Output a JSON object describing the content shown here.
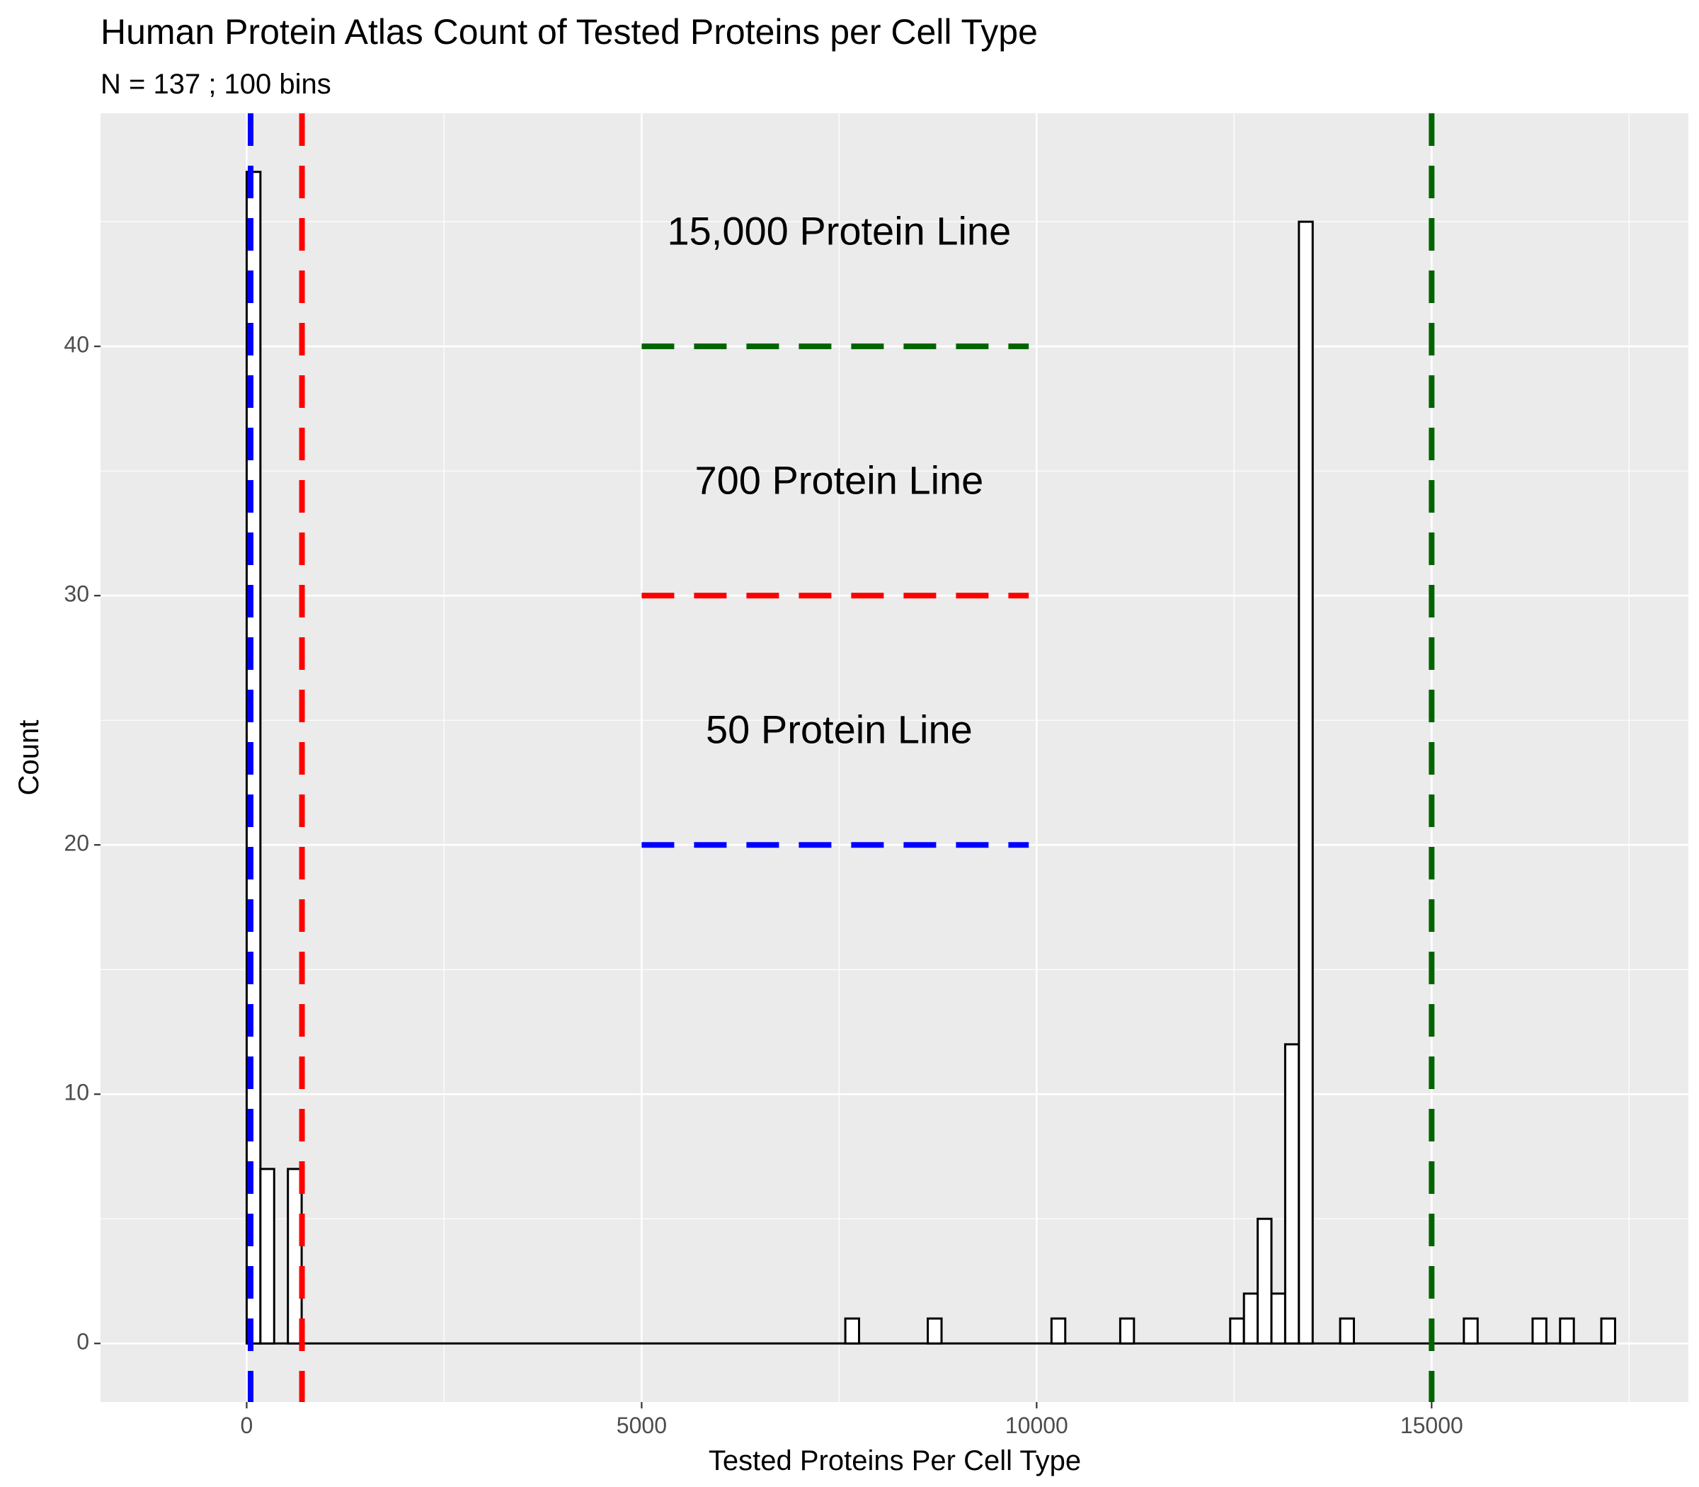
{
  "chart_data": {
    "type": "bar",
    "title": "Human Protein Atlas Count of Tested Proteins per Cell Type",
    "subtitle": "N =  137 ; 100 bins",
    "xlabel": "Tested Proteins Per Cell Type",
    "ylabel": "Count",
    "xlim": [
      -1850,
      18250
    ],
    "ylim": [
      -2.35,
      49.35
    ],
    "x_ticks": [
      {
        "value": 0,
        "label": "0"
      },
      {
        "value": 5000,
        "label": "5000"
      },
      {
        "value": 10000,
        "label": "10000"
      },
      {
        "value": 15000,
        "label": "15000"
      }
    ],
    "y_ticks": [
      {
        "value": 0,
        "label": "0"
      },
      {
        "value": 10,
        "label": "10"
      },
      {
        "value": 20,
        "label": "20"
      },
      {
        "value": 30,
        "label": "30"
      },
      {
        "value": 40,
        "label": "40"
      }
    ],
    "bin_width": 174,
    "bins": [
      {
        "x": 0,
        "count": 47
      },
      {
        "x": 174,
        "count": 7
      },
      {
        "x": 522,
        "count": 7
      },
      {
        "x": 7578,
        "count": 1
      },
      {
        "x": 8622,
        "count": 1
      },
      {
        "x": 10188,
        "count": 1
      },
      {
        "x": 11058,
        "count": 1
      },
      {
        "x": 12450,
        "count": 1
      },
      {
        "x": 12624,
        "count": 2
      },
      {
        "x": 12798,
        "count": 5
      },
      {
        "x": 12972,
        "count": 2
      },
      {
        "x": 13146,
        "count": 12
      },
      {
        "x": 13320,
        "count": 45
      },
      {
        "x": 13842,
        "count": 1
      },
      {
        "x": 15408,
        "count": 1
      },
      {
        "x": 16278,
        "count": 1
      },
      {
        "x": 16626,
        "count": 1
      },
      {
        "x": 17148,
        "count": 1
      }
    ],
    "reference_lines": [
      {
        "x": 50,
        "color": "#0000ff"
      },
      {
        "x": 700,
        "color": "#ff0000"
      },
      {
        "x": 15000,
        "color": "#006400"
      }
    ],
    "legend_segments": [
      {
        "x_start": 5000,
        "x_end": 9900,
        "y": 40,
        "color": "#006400"
      },
      {
        "x_start": 5000,
        "x_end": 9900,
        "y": 30,
        "color": "#ff0000"
      },
      {
        "x_start": 5000,
        "x_end": 9900,
        "y": 20,
        "color": "#0000ff"
      }
    ],
    "annotations": [
      {
        "text": "15,000 Protein Line",
        "x": 7500,
        "y": 44.5
      },
      {
        "text": "700 Protein Line",
        "x": 7500,
        "y": 34.5
      },
      {
        "text": "50 Protein Line",
        "x": 7500,
        "y": 24.5
      }
    ],
    "grid": true,
    "panel_background": "#ebebeb",
    "bar_fill": "#ffffff",
    "bar_outline": "#000000"
  }
}
